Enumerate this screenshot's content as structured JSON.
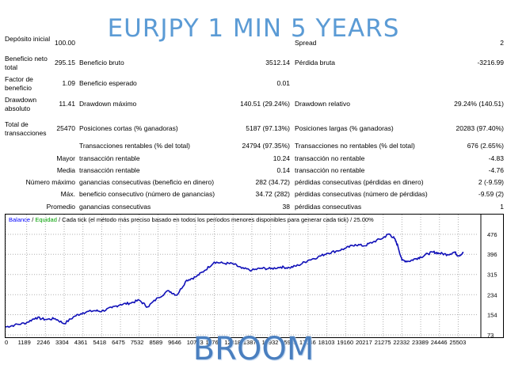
{
  "overlay": {
    "title": "EURJPY 1 MIN 5 YEARS",
    "footer": "BROOM"
  },
  "stats": {
    "deposito_inicial": {
      "label": "Depósito inicial",
      "value": "100.00"
    },
    "spread": {
      "label": "Spread",
      "value": "2"
    },
    "beneficio_neto": {
      "label": "Beneficio neto total",
      "value": "295.15"
    },
    "beneficio_bruto": {
      "label": "Beneficio bruto",
      "value": "3512.14"
    },
    "perdida_bruta": {
      "label": "Pérdida bruta",
      "value": "-3216.99"
    },
    "factor_beneficio": {
      "label": "Factor de beneficio",
      "value": "1.09"
    },
    "beneficio_esperado": {
      "label": "Beneficio esperado",
      "value": "0.01"
    },
    "drawdown_absoluto": {
      "label": "Drawdown absoluto",
      "value": "11.41"
    },
    "drawdown_maximo": {
      "label": "Drawdown máximo",
      "value": "140.51 (29.24%)"
    },
    "drawdown_relativo": {
      "label": "Drawdown relativo",
      "value": "29.24% (140.51)"
    },
    "total_transacciones": {
      "label": "Total de transacciones",
      "value": "25470"
    },
    "posiciones_cortas": {
      "label": "Posiciones cortas (% ganadoras)",
      "value": "5187 (97.13%)"
    },
    "posiciones_largas": {
      "label": "Posiciones largas (% ganadoras)",
      "value": "20283 (97.40%)"
    },
    "rentables": {
      "label": "Transacciones rentables (% del total)",
      "value": "24794 (97.35%)"
    },
    "no_rentables": {
      "label": "Transacciones no rentables (% del total)",
      "value": "676 (2.65%)"
    },
    "mayor_prefix": "Mayor",
    "media_prefix": "Media",
    "numero_maximo_prefix": "Número máximo",
    "maximo_prefix": "Máx.",
    "promedio_prefix": "Promedio",
    "mayor_rentable": {
      "label": "transacción rentable",
      "value": "10.24"
    },
    "mayor_no_rentable": {
      "label": "transacción no rentable",
      "value": "-4.83"
    },
    "media_rentable": {
      "label": "transacción rentable",
      "value": "0.14"
    },
    "media_no_rentable": {
      "label": "transacción no rentable",
      "value": "-4.76"
    },
    "max_gan_consec": {
      "label": "ganancias consecutivas (beneficio en dinero)",
      "value": "282 (34.72)"
    },
    "max_perd_consec": {
      "label": "pérdidas consecutivas (pérdidas en dinero)",
      "value": "2 (-9.59)"
    },
    "max_benef_consec": {
      "label": "beneficio consecutivo (número de ganancias)",
      "value": "34.72 (282)"
    },
    "max_perd_consec2": {
      "label": "pérdidas consecutivas (número de pérdidas)",
      "value": "-9.59 (2)"
    },
    "prom_gan_consec": {
      "label": "ganancias consecutivas",
      "value": "38"
    },
    "prom_perd_consec": {
      "label": "pérdidas consecutivas",
      "value": "1"
    }
  },
  "chart": {
    "legend_balance": "Balance",
    "legend_sep1": " / ",
    "legend_equity": "Equidad",
    "legend_rest": " / Cada tick (el método más preciso basado en todos los períodos menores disponibles para generar cada tick) / 25.00%",
    "colors": {
      "balance": "#1010b8",
      "grid": "#b0b0b0"
    }
  },
  "chart_data": {
    "type": "line",
    "title": "",
    "xlabel": "",
    "ylabel": "",
    "grid": true,
    "x_ticks": [
      0,
      1189,
      2246,
      3304,
      4361,
      5418,
      6475,
      7532,
      8589,
      9646,
      10703,
      11760,
      12818,
      13875,
      14932,
      15989,
      17046,
      18103,
      19160,
      20217,
      21275,
      22332,
      23389,
      24446,
      25503
    ],
    "y_ticks": [
      73,
      154,
      234,
      315,
      396,
      476
    ],
    "xlim": [
      0,
      26600
    ],
    "ylim": [
      73,
      530
    ],
    "series": [
      {
        "name": "Balance",
        "x": [
          0,
          500,
          1189,
          1700,
          2246,
          2800,
          3304,
          3900,
          4361,
          5000,
          5418,
          6000,
          6475,
          7000,
          7532,
          8000,
          8589,
          9200,
          9646,
          10200,
          10703,
          11200,
          11760,
          12300,
          12818,
          13300,
          13875,
          14400,
          14932,
          15500,
          15989,
          16500,
          17046,
          17600,
          18103,
          18700,
          19160,
          19700,
          20217,
          20700,
          21275,
          21600,
          21900,
          22100,
          22332,
          22700,
          23100,
          23389,
          23800,
          24100,
          24446,
          24900,
          25300,
          25503,
          25800
        ],
        "y": [
          105,
          112,
          122,
          142,
          135,
          138,
          118,
          148,
          162,
          170,
          168,
          182,
          195,
          200,
          212,
          185,
          222,
          250,
          232,
          292,
          305,
          330,
          365,
          360,
          358,
          340,
          332,
          340,
          338,
          345,
          342,
          352,
          372,
          385,
          400,
          410,
          420,
          435,
          430,
          445,
          462,
          478,
          460,
          430,
          372,
          368,
          378,
          385,
          398,
          405,
          400,
          395,
          405,
          390,
          402
        ]
      }
    ]
  }
}
